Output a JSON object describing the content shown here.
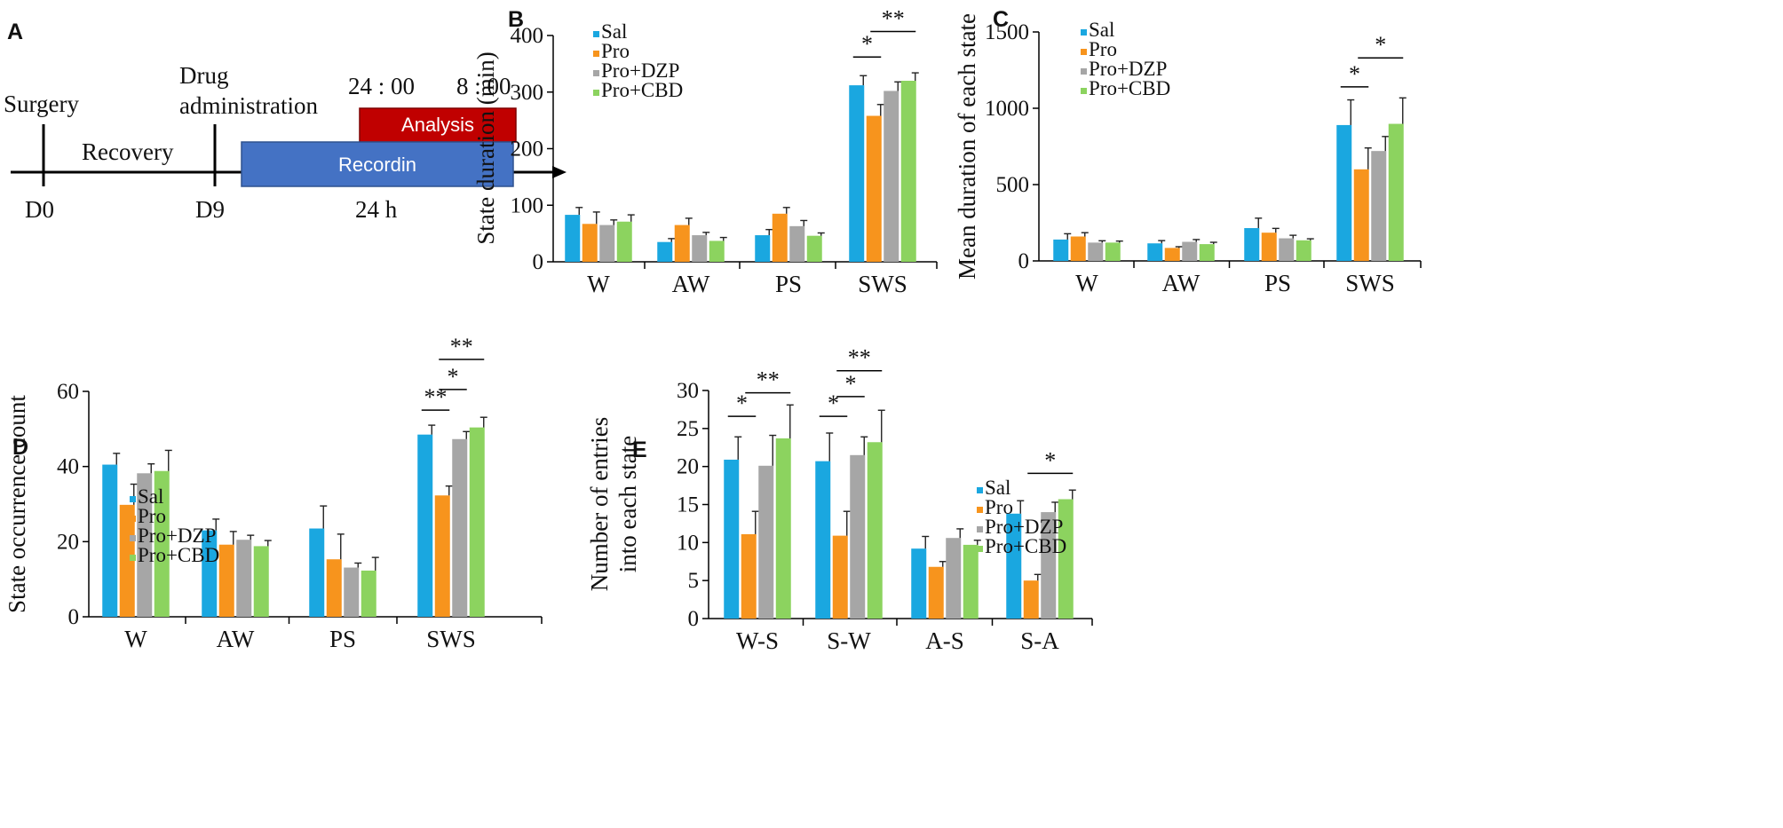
{
  "colors": {
    "Sal": "#1aa7e0",
    "Pro": "#f7941d",
    "Pro+DZP": "#a6a6a6",
    "Pro+CBD": "#8cd35f",
    "recording_box": "#4472c4",
    "analysis_box": "#c00000"
  },
  "panels": {
    "A": {
      "letter": "A",
      "events": [
        "Surgery",
        "Drug",
        "administration"
      ],
      "phase_label": "Recovery",
      "day_labels": [
        "D0",
        "D9"
      ],
      "times": [
        "24 : 00",
        "8 : 00"
      ],
      "duration": "24 h",
      "analysis_label": "Analysis",
      "recording_label": "Recordin"
    }
  },
  "chart_data": [
    {
      "panel": "B",
      "type": "bar",
      "categories": [
        "W",
        "AW",
        "PS",
        "SWS"
      ],
      "ylabel": "State duration (min)",
      "ylim": [
        0,
        400
      ],
      "yticks": [
        0,
        100,
        200,
        300,
        400
      ],
      "legend": "top-left",
      "grid": false,
      "series": [
        {
          "name": "Sal",
          "values": [
            83,
            35,
            47,
            312
          ],
          "errors": [
            13,
            6,
            10,
            17
          ]
        },
        {
          "name": "Pro",
          "values": [
            67,
            65,
            85,
            258
          ],
          "errors": [
            21,
            12,
            11,
            20
          ]
        },
        {
          "name": "Pro+DZP",
          "values": [
            65,
            47,
            63,
            302
          ],
          "errors": [
            9,
            5,
            10,
            16
          ]
        },
        {
          "name": "Pro+CBD",
          "values": [
            71,
            37,
            46,
            320
          ],
          "errors": [
            12,
            6,
            5,
            14
          ]
        }
      ],
      "annotations": [
        {
          "category": 3,
          "from": 0,
          "to": 1,
          "label": "*",
          "y": 362
        },
        {
          "category": 3,
          "from": 1,
          "to": 3,
          "label": "**",
          "y": 407
        }
      ]
    },
    {
      "panel": "C",
      "type": "bar",
      "categories": [
        "W",
        "AW",
        "PS",
        "SWS"
      ],
      "ylabel": "Mean duration of each state",
      "ylim": [
        0,
        1500
      ],
      "yticks": [
        0,
        500,
        1000,
        1500
      ],
      "legend": "top-left",
      "grid": false,
      "series": [
        {
          "name": "Sal",
          "values": [
            140,
            115,
            215,
            890
          ],
          "errors": [
            38,
            18,
            65,
            165
          ]
        },
        {
          "name": "Pro",
          "values": [
            160,
            85,
            185,
            600
          ],
          "errors": [
            25,
            8,
            28,
            140
          ]
        },
        {
          "name": "Pro+DZP",
          "values": [
            120,
            125,
            148,
            720
          ],
          "errors": [
            12,
            15,
            20,
            95
          ]
        },
        {
          "name": "Pro+CBD",
          "values": [
            120,
            110,
            135,
            898
          ],
          "errors": [
            10,
            12,
            10,
            170
          ]
        }
      ],
      "annotations": [
        {
          "category": 3,
          "from": 0,
          "to": 1,
          "label": "*",
          "y": 1140
        },
        {
          "category": 3,
          "from": 1,
          "to": 3,
          "label": "*",
          "y": 1330
        }
      ]
    },
    {
      "panel": "D",
      "type": "bar",
      "categories": [
        "W",
        "AW",
        "PS",
        "SWS"
      ],
      "ylabel": "State occurrence count",
      "ylim": [
        0,
        60
      ],
      "yticks": [
        0,
        20,
        40,
        60
      ],
      "legend": "top-left",
      "grid": false,
      "series": [
        {
          "name": "Sal",
          "values": [
            40.5,
            23,
            23.5,
            48.5
          ],
          "errors": [
            3,
            3,
            6,
            2.5
          ]
        },
        {
          "name": "Pro",
          "values": [
            29.8,
            19.2,
            15.3,
            32.3
          ],
          "errors": [
            5.5,
            3.5,
            6.7,
            2.5
          ]
        },
        {
          "name": "Pro+DZP",
          "values": [
            38.2,
            20.5,
            13.1,
            47.3
          ],
          "errors": [
            2.5,
            1.2,
            1.2,
            2
          ]
        },
        {
          "name": "Pro+CBD",
          "values": [
            38.8,
            18.8,
            12.3,
            50.4
          ],
          "errors": [
            5.5,
            1.5,
            3.5,
            2.7
          ]
        }
      ],
      "annotations": [
        {
          "category": 3,
          "from": 0,
          "to": 1,
          "label": "**",
          "y": 55
        },
        {
          "category": 3,
          "from": 1,
          "to": 2,
          "label": "*",
          "y": 60.5
        },
        {
          "category": 3,
          "from": 1,
          "to": 3,
          "label": "**",
          "y": 68.5
        }
      ]
    },
    {
      "panel": "E",
      "type": "bar",
      "categories": [
        "W-S",
        "S-W",
        "A-S",
        "S-A"
      ],
      "ylabel": [
        "Number of entries",
        "into each state"
      ],
      "ylim": [
        0,
        30
      ],
      "yticks": [
        0,
        5,
        10,
        15,
        20,
        25,
        30
      ],
      "legend": "top-right",
      "grid": false,
      "series": [
        {
          "name": "Sal",
          "values": [
            20.9,
            20.7,
            9.2,
            13.8
          ],
          "errors": [
            3,
            3.7,
            1.6,
            1.7
          ]
        },
        {
          "name": "Pro",
          "values": [
            11.1,
            10.9,
            6.8,
            5.0
          ],
          "errors": [
            3,
            3.2,
            0.7,
            0.8
          ]
        },
        {
          "name": "Pro+DZP",
          "values": [
            20.1,
            21.5,
            10.6,
            14.0
          ],
          "errors": [
            4,
            2.4,
            1.2,
            1.3
          ]
        },
        {
          "name": "Pro+CBD",
          "values": [
            23.7,
            23.2,
            9.7,
            15.7
          ],
          "errors": [
            4.4,
            4.2,
            0.6,
            1.2
          ]
        }
      ],
      "annotations": [
        {
          "category": 0,
          "from": 0,
          "to": 1,
          "label": "*",
          "y": 26.6
        },
        {
          "category": 0,
          "from": 1,
          "to": 3,
          "label": "**",
          "y": 29.7
        },
        {
          "category": 1,
          "from": 0,
          "to": 1,
          "label": "*",
          "y": 26.6
        },
        {
          "category": 1,
          "from": 1,
          "to": 2,
          "label": "*",
          "y": 29.2
        },
        {
          "category": 1,
          "from": 1,
          "to": 3,
          "label": "**",
          "y": 32.6
        },
        {
          "category": 3,
          "from": 1,
          "to": 3,
          "label": "*",
          "y": 19.1
        }
      ]
    }
  ]
}
